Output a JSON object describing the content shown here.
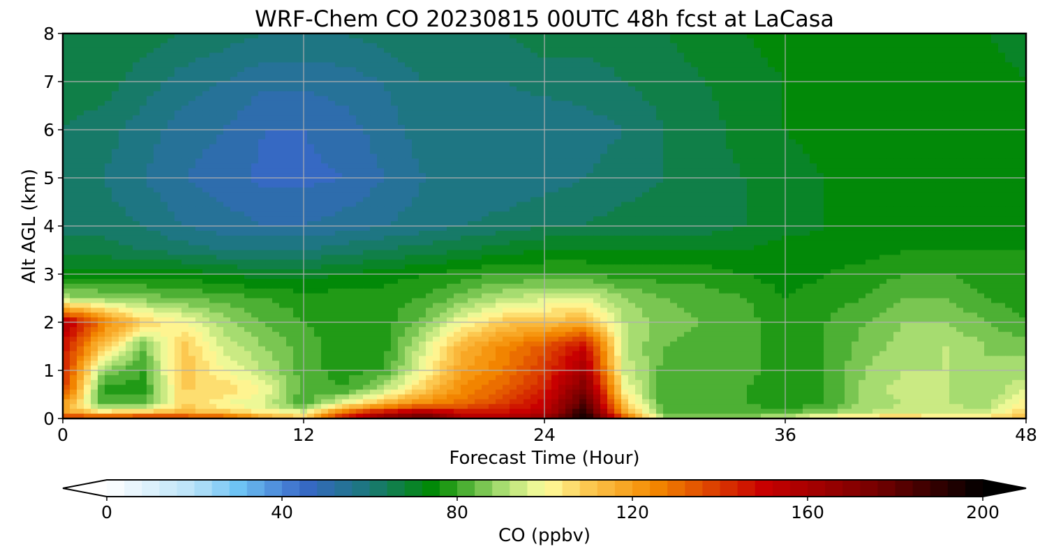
{
  "chart_data": {
    "type": "heatmap",
    "title": "WRF-Chem CO  20230815 00UTC 48h fcst at LaCasa",
    "xlabel": "Forecast Time (Hour)",
    "ylabel": "Alt AGL (km)",
    "xlim": [
      0,
      48
    ],
    "ylim": [
      0,
      8
    ],
    "xticks": [
      0,
      12,
      24,
      36,
      48
    ],
    "yticks": [
      0,
      1,
      2,
      3,
      4,
      5,
      6,
      7,
      8
    ],
    "grid": true,
    "x": [
      0,
      2,
      4,
      6,
      8,
      10,
      12,
      14,
      16,
      18,
      20,
      22,
      24,
      26,
      28,
      30,
      32,
      34,
      36,
      38,
      40,
      42,
      44,
      46,
      48
    ],
    "y": [
      0,
      0.1,
      0.3,
      0.6,
      1.0,
      1.5,
      2.0,
      2.5,
      3.0,
      3.5,
      4.0,
      5.0,
      6.0,
      7.0,
      8.0
    ],
    "z": [
      [
        150,
        150,
        150,
        150,
        145,
        125,
        110,
        150,
        175,
        185,
        160,
        160,
        170,
        200,
        140,
        90,
        90,
        90,
        95,
        110,
        115,
        115,
        110,
        110,
        115
      ],
      [
        120,
        110,
        115,
        115,
        112,
        105,
        100,
        135,
        155,
        165,
        150,
        150,
        155,
        195,
        120,
        84,
        84,
        84,
        85,
        88,
        92,
        95,
        95,
        94,
        110
      ],
      [
        120,
        82,
        82,
        108,
        100,
        95,
        80,
        100,
        115,
        125,
        130,
        140,
        150,
        185,
        110,
        80,
        80,
        80,
        76,
        80,
        90,
        92,
        92,
        90,
        102
      ],
      [
        140,
        78,
        78,
        108,
        108,
        100,
        82,
        80,
        92,
        110,
        125,
        132,
        145,
        175,
        100,
        80,
        80,
        80,
        76,
        80,
        90,
        94,
        92,
        88,
        96
      ],
      [
        145,
        88,
        80,
        112,
        100,
        92,
        82,
        78,
        80,
        100,
        120,
        128,
        140,
        160,
        95,
        82,
        82,
        82,
        76,
        80,
        88,
        92,
        92,
        88,
        90
      ],
      [
        148,
        110,
        85,
        110,
        95,
        88,
        82,
        78,
        78,
        95,
        115,
        125,
        135,
        150,
        92,
        84,
        82,
        82,
        76,
        80,
        86,
        90,
        92,
        88,
        86
      ],
      [
        158,
        128,
        108,
        100,
        90,
        84,
        80,
        78,
        78,
        86,
        100,
        110,
        112,
        115,
        92,
        86,
        84,
        82,
        76,
        80,
        84,
        88,
        88,
        84,
        80
      ],
      [
        90,
        88,
        86,
        84,
        82,
        80,
        78,
        78,
        78,
        80,
        86,
        92,
        95,
        96,
        88,
        84,
        82,
        80,
        76,
        78,
        80,
        84,
        84,
        80,
        78
      ],
      [
        74,
        74,
        74,
        74,
        72,
        70,
        70,
        72,
        74,
        76,
        78,
        80,
        80,
        80,
        78,
        78,
        78,
        76,
        74,
        76,
        78,
        80,
        80,
        78,
        76
      ],
      [
        66,
        66,
        64,
        62,
        60,
        60,
        60,
        62,
        64,
        66,
        68,
        70,
        72,
        72,
        72,
        72,
        72,
        72,
        74,
        74,
        74,
        76,
        76,
        76,
        76
      ],
      [
        62,
        62,
        60,
        56,
        54,
        52,
        52,
        54,
        56,
        58,
        60,
        62,
        64,
        64,
        66,
        66,
        66,
        68,
        70,
        72,
        72,
        72,
        72,
        72,
        72
      ],
      [
        62,
        60,
        56,
        52,
        50,
        47,
        47,
        48,
        52,
        56,
        56,
        56,
        58,
        60,
        62,
        64,
        66,
        68,
        70,
        72,
        72,
        72,
        72,
        72,
        72
      ],
      [
        64,
        62,
        58,
        54,
        52,
        48,
        48,
        50,
        54,
        58,
        56,
        56,
        56,
        58,
        60,
        64,
        66,
        70,
        72,
        74,
        74,
        74,
        74,
        74,
        72
      ],
      [
        66,
        66,
        62,
        58,
        56,
        53,
        53,
        54,
        56,
        60,
        60,
        60,
        62,
        62,
        64,
        66,
        68,
        70,
        72,
        74,
        74,
        74,
        74,
        74,
        72
      ],
      [
        67,
        67,
        66,
        64,
        62,
        60,
        60,
        60,
        62,
        64,
        64,
        64,
        66,
        66,
        66,
        68,
        70,
        72,
        74,
        74,
        74,
        74,
        74,
        72,
        70
      ]
    ],
    "colorbar": {
      "label": "CO  (ppbv)",
      "min": 0,
      "max": 200,
      "ticks": [
        0,
        40,
        80,
        120,
        160,
        200
      ],
      "extend": "both",
      "levels": 50,
      "colors": {
        "0": "#ffffff",
        "20": "#b8e2f8",
        "30": "#6ec3f4",
        "45": "#3868c8",
        "60": "#1a7878",
        "75": "#008a00",
        "90": "#a6dc70",
        "100": "#ffffa0",
        "110": "#fcc850",
        "125": "#f48a00",
        "150": "#c80000",
        "175": "#780000",
        "200": "#000000"
      }
    }
  }
}
